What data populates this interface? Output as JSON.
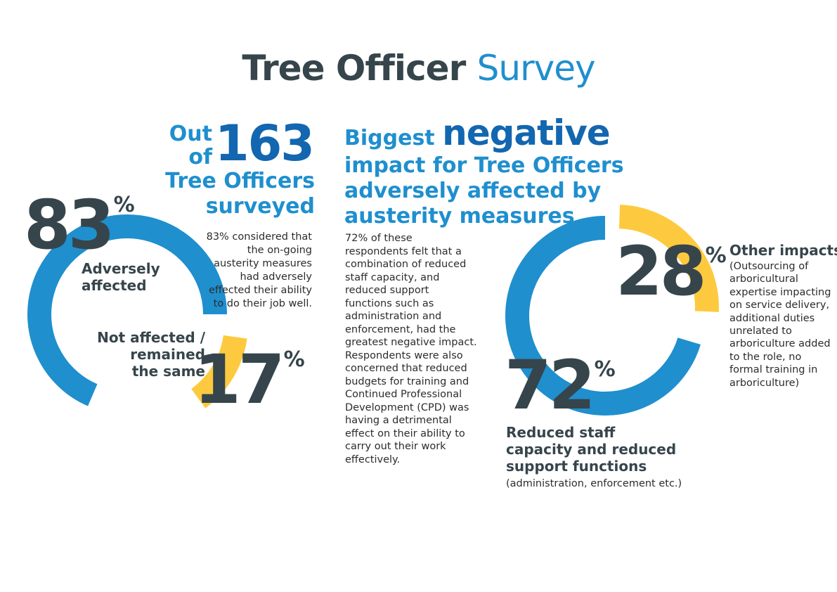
{
  "title": {
    "part1": "Tree Officer",
    "part2": "Survey"
  },
  "left": {
    "headline_prefix": "Out of",
    "count": "163",
    "headline_suffix_line1": "Tree Officers",
    "headline_suffix_line2": "surveyed",
    "description": "83% considered that the on-going austerity measures had adversely effected their ability to do their job well.",
    "adverse_value": "83",
    "adverse_label_line1": "Adversely",
    "adverse_label_line2": "affected",
    "not_affected_value": "17",
    "not_affected_label_line1": "Not affected /",
    "not_affected_label_line2": "remained",
    "not_affected_label_line3": "the same",
    "percent_sign": "%"
  },
  "right": {
    "headline_word1": "Biggest",
    "headline_big": "negative",
    "headline_line2": "impact for Tree Officers",
    "headline_line3": "adversely affected by",
    "headline_line4": "austerity measures",
    "description": "72% of these respondents felt that a combination of reduced staff capacity, and reduced support functions such as administration and enforcement, had the greatest negative impact. Respondents were also concerned that reduced budgets for training and Continued Professional Development (CPD) was having a detrimental effect on their ability to carry out their work effectively.",
    "other_value": "28",
    "other_title": "Other impacts",
    "other_desc": "(Outsourcing of arboricultural expertise impacting on service delivery, additional duties unrelated to arboriculture added to the role, no formal training in arboriculture)",
    "reduced_value": "72",
    "reduced_title_line1": "Reduced staff",
    "reduced_title_line2": "capacity and reduced",
    "reduced_title_line3": "support functions",
    "reduced_note": "(administration, enforcement etc.)",
    "percent_sign": "%"
  },
  "colors": {
    "blue": "#1f8fce",
    "yellow": "#fdca3f",
    "dark": "#36454b",
    "navy": "#1366b0"
  },
  "chart_data": [
    {
      "type": "pie",
      "categories": [
        "Adversely affected",
        "Not affected / remained the same"
      ],
      "values": [
        83,
        17
      ],
      "colors": [
        "#1f8fce",
        "#fdca3f"
      ]
    },
    {
      "type": "pie",
      "categories": [
        "Reduced staff capacity and reduced support functions",
        "Other impacts"
      ],
      "values": [
        72,
        28
      ],
      "colors": [
        "#1f8fce",
        "#fdca3f"
      ]
    }
  ]
}
